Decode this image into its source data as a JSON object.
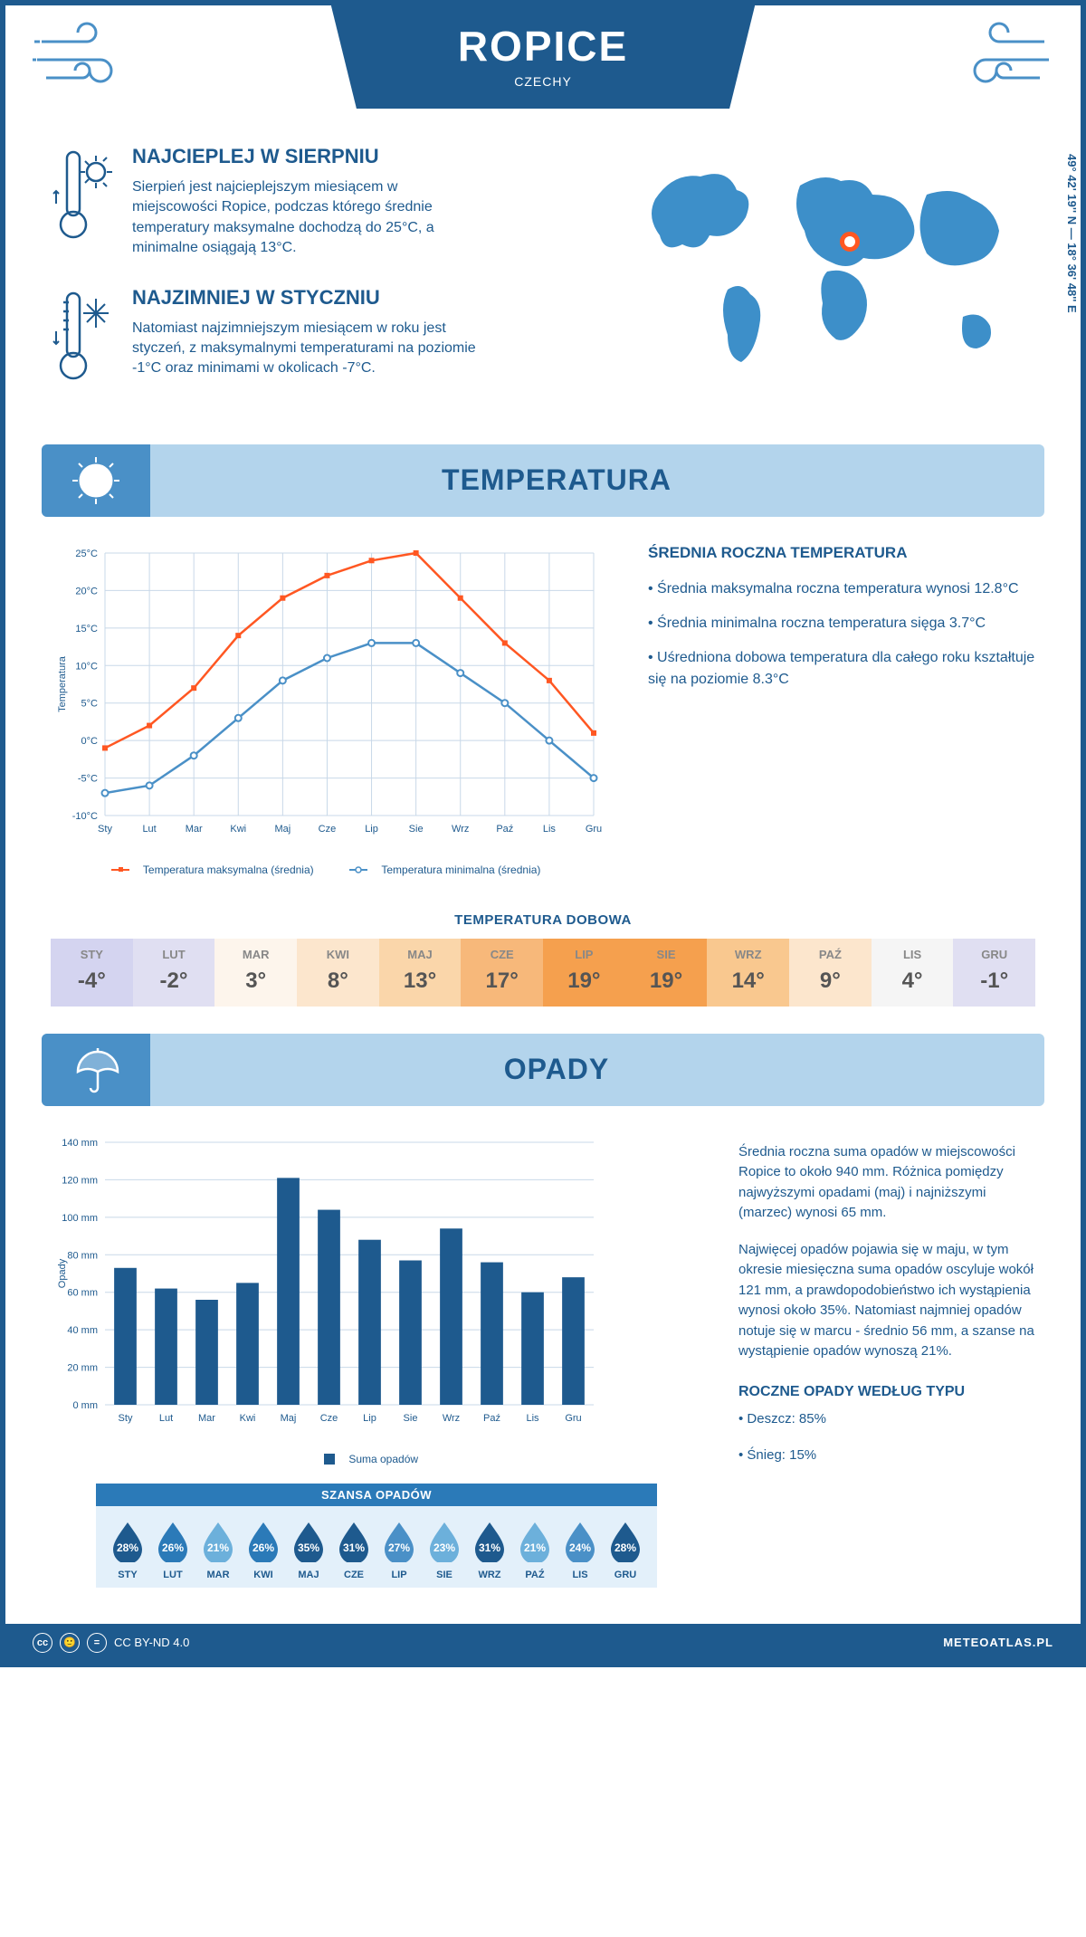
{
  "header": {
    "city": "ROPICE",
    "country": "CZECHY"
  },
  "coords": "49° 42' 19'' N — 18° 36' 48'' E",
  "marker": {
    "left_pct": 52,
    "top_pct": 32
  },
  "hottest": {
    "title": "NAJCIEPLEJ W SIERPNIU",
    "text": "Sierpień jest najcieplejszym miesiącem w miejscowości Ropice, podczas którego średnie temperatury maksymalne dochodzą do 25°C, a minimalne osiągają 13°C."
  },
  "coldest": {
    "title": "NAJZIMNIEJ W STYCZNIU",
    "text": "Natomiast najzimniejszym miesiącem w roku jest styczeń, z maksymalnymi temperaturami na poziomie -1°C oraz minimami w okolicach -7°C."
  },
  "sections": {
    "temperature": "TEMPERATURA",
    "precip": "OPADY"
  },
  "temp_chart": {
    "months": [
      "Sty",
      "Lut",
      "Mar",
      "Kwi",
      "Maj",
      "Cze",
      "Lip",
      "Sie",
      "Wrz",
      "Paź",
      "Lis",
      "Gru"
    ],
    "max_series": [
      -1,
      2,
      7,
      14,
      19,
      22,
      24,
      25,
      19,
      13,
      8,
      1
    ],
    "min_series": [
      -7,
      -6,
      -2,
      3,
      8,
      11,
      13,
      13,
      9,
      5,
      0,
      -5
    ],
    "ylim": [
      -10,
      25
    ],
    "ytick_step": 5,
    "ylabel": "Temperatura",
    "max_color": "#ff5722",
    "min_color": "#4a90c7",
    "grid_color": "#c8d8e8",
    "legend_max": "Temperatura maksymalna (średnia)",
    "legend_min": "Temperatura minimalna (średnia)"
  },
  "temp_text": {
    "heading": "ŚREDNIA ROCZNA TEMPERATURA",
    "bullets": [
      "Średnia maksymalna roczna temperatura wynosi 12.8°C",
      "Średnia minimalna roczna temperatura sięga 3.7°C",
      "Uśredniona dobowa temperatura dla całego roku kształtuje się na poziomie 8.3°C"
    ]
  },
  "daily": {
    "title": "TEMPERATURA DOBOWA",
    "months": [
      "STY",
      "LUT",
      "MAR",
      "KWI",
      "MAJ",
      "CZE",
      "LIP",
      "SIE",
      "WRZ",
      "PAŹ",
      "LIS",
      "GRU"
    ],
    "values": [
      "-4°",
      "-2°",
      "3°",
      "8°",
      "13°",
      "17°",
      "19°",
      "19°",
      "14°",
      "9°",
      "4°",
      "-1°"
    ],
    "colors": [
      "#d4d4f0",
      "#e0dff2",
      "#fdf5ec",
      "#fce6cd",
      "#fad6aa",
      "#f7b87a",
      "#f5a04e",
      "#f5a04e",
      "#f9c88f",
      "#fce6cd",
      "#f5f5f5",
      "#e0dff2"
    ]
  },
  "precip_chart": {
    "months": [
      "Sty",
      "Lut",
      "Mar",
      "Kwi",
      "Maj",
      "Cze",
      "Lip",
      "Sie",
      "Wrz",
      "Paź",
      "Lis",
      "Gru"
    ],
    "values": [
      73,
      62,
      56,
      65,
      121,
      104,
      88,
      77,
      94,
      76,
      60,
      68
    ],
    "ylim": [
      0,
      140
    ],
    "ytick_step": 20,
    "ylabel": "Opady",
    "bar_color": "#1e5a8e",
    "grid_color": "#c8d8e8",
    "legend": "Suma opadów"
  },
  "precip_text": {
    "p1": "Średnia roczna suma opadów w miejscowości Ropice to około 940 mm. Różnica pomiędzy najwyższymi opadami (maj) i najniższymi (marzec) wynosi 65 mm.",
    "p2": "Najwięcej opadów pojawia się w maju, w tym okresie miesięczna suma opadów oscyluje wokół 121 mm, a prawdopodobieństwo ich wystąpienia wynosi około 35%. Natomiast najmniej opadów notuje się w marcu - średnio 56 mm, a szanse na wystąpienie opadów wynoszą 21%.",
    "type_heading": "ROCZNE OPADY WEDŁUG TYPU",
    "type_bullets": [
      "Deszcz: 85%",
      "Śnieg: 15%"
    ]
  },
  "chance": {
    "title": "SZANSA OPADÓW",
    "months": [
      "STY",
      "LUT",
      "MAR",
      "KWI",
      "MAJ",
      "CZE",
      "LIP",
      "SIE",
      "WRZ",
      "PAŹ",
      "LIS",
      "GRU"
    ],
    "values": [
      "28%",
      "26%",
      "21%",
      "26%",
      "35%",
      "31%",
      "27%",
      "23%",
      "31%",
      "21%",
      "24%",
      "28%"
    ],
    "colors": [
      "#1e5a8e",
      "#2b7ab8",
      "#6cb0db",
      "#2b7ab8",
      "#1e5a8e",
      "#1e5a8e",
      "#4a90c7",
      "#6cb0db",
      "#1e5a8e",
      "#6cb0db",
      "#4a90c7",
      "#1e5a8e"
    ]
  },
  "footer": {
    "license": "CC BY-ND 4.0",
    "brand": "METEOATLAS.PL"
  }
}
